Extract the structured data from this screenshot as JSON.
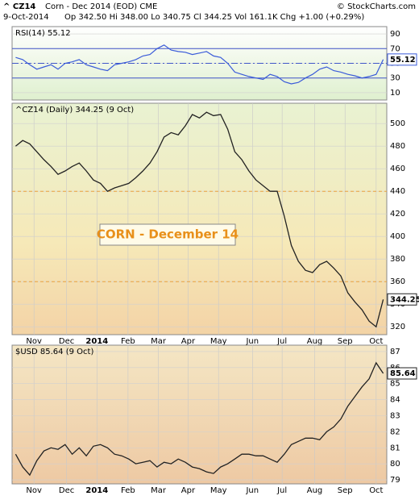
{
  "header": {
    "symbol": "^ CZ14",
    "description": "Corn - Dec 2014 (EOD) CME",
    "date": "9-Oct-2014",
    "quote": "Op 342.50 Hi 348.00 Lo 340.75 Cl 344.25 Vol 161.1K Chg +1.00 (+0.29%)",
    "source": "© StockCharts.com"
  },
  "chart_data": [
    {
      "type": "line",
      "title": "RSI(14) 55.12",
      "color": "#3a5bd9",
      "values": [
        58,
        55,
        48,
        42,
        45,
        48,
        42,
        50,
        52,
        55,
        48,
        45,
        42,
        40,
        48,
        50,
        52,
        55,
        60,
        62,
        70,
        75,
        68,
        66,
        65,
        62,
        64,
        66,
        60,
        58,
        50,
        38,
        35,
        32,
        30,
        28,
        35,
        32,
        25,
        22,
        24,
        30,
        35,
        42,
        45,
        40,
        38,
        35,
        33,
        30,
        32,
        35,
        55.12
      ],
      "xlim": [
        0,
        53
      ],
      "ylim": [
        0,
        100
      ],
      "yticks": [
        10,
        30,
        50,
        70,
        90
      ],
      "reference_lines": [
        70,
        30
      ],
      "midline": 50
    },
    {
      "type": "line",
      "title": "^CZ14 (Daily) 344.25 (9 Oct)",
      "color": "#222222",
      "annotation": "CORN - December 14",
      "values": [
        480,
        485,
        482,
        475,
        468,
        462,
        455,
        458,
        462,
        465,
        458,
        450,
        447,
        440,
        443,
        445,
        447,
        452,
        458,
        465,
        475,
        488,
        492,
        490,
        498,
        508,
        505,
        510,
        507,
        508,
        495,
        475,
        468,
        458,
        450,
        445,
        440,
        440,
        418,
        392,
        378,
        370,
        368,
        375,
        378,
        372,
        365,
        350,
        342,
        335,
        325,
        320,
        344.25
      ],
      "xlim": [
        0,
        53
      ],
      "ylim": [
        313,
        518
      ],
      "yticks": [
        320,
        340,
        360,
        380,
        400,
        420,
        440,
        460,
        480,
        500
      ],
      "reference_lines": [
        440,
        360
      ],
      "xticks": [
        {
          "value": 3.1,
          "label": "Nov"
        },
        {
          "value": 7.7,
          "label": "Dec"
        },
        {
          "value": 12,
          "label": "2014"
        },
        {
          "value": 16.4,
          "label": "Feb"
        },
        {
          "value": 20.7,
          "label": "Mar"
        },
        {
          "value": 24.9,
          "label": "Apr"
        },
        {
          "value": 29.2,
          "label": "May"
        },
        {
          "value": 34,
          "label": "Jun"
        },
        {
          "value": 38.2,
          "label": "Jul"
        },
        {
          "value": 42.8,
          "label": "Aug"
        },
        {
          "value": 47.1,
          "label": "Sep"
        },
        {
          "value": 51.5,
          "label": "Oct"
        }
      ]
    },
    {
      "type": "line",
      "title": "$USD 85.64 (9 Oct)",
      "color": "#222222",
      "values": [
        80.6,
        79.8,
        79.3,
        80.2,
        80.8,
        81.0,
        80.9,
        81.2,
        80.6,
        81.0,
        80.5,
        81.1,
        81.2,
        81.0,
        80.6,
        80.5,
        80.3,
        80.0,
        80.1,
        80.2,
        79.8,
        80.1,
        80.0,
        80.3,
        80.1,
        79.8,
        79.7,
        79.5,
        79.4,
        79.8,
        80.0,
        80.3,
        80.6,
        80.6,
        80.5,
        80.5,
        80.3,
        80.1,
        80.6,
        81.2,
        81.4,
        81.6,
        81.6,
        81.5,
        82.0,
        82.3,
        82.8,
        83.6,
        84.2,
        84.8,
        85.3,
        86.3,
        85.64
      ],
      "xlim": [
        0,
        53
      ],
      "ylim": [
        78.75,
        87.4
      ],
      "yticks": [
        79,
        80,
        81,
        82,
        83,
        84,
        85,
        86,
        87
      ],
      "xticks": [
        {
          "value": 3.1,
          "label": "Nov"
        },
        {
          "value": 7.7,
          "label": "Dec"
        },
        {
          "value": 12,
          "label": "2014"
        },
        {
          "value": 16.4,
          "label": "Feb"
        },
        {
          "value": 20.7,
          "label": "Mar"
        },
        {
          "value": 24.9,
          "label": "Apr"
        },
        {
          "value": 29.2,
          "label": "May"
        },
        {
          "value": 34,
          "label": "Jun"
        },
        {
          "value": 38.2,
          "label": "Jul"
        },
        {
          "value": 42.8,
          "label": "Aug"
        },
        {
          "value": 47.1,
          "label": "Sep"
        },
        {
          "value": 51.5,
          "label": "Oct"
        }
      ]
    }
  ]
}
